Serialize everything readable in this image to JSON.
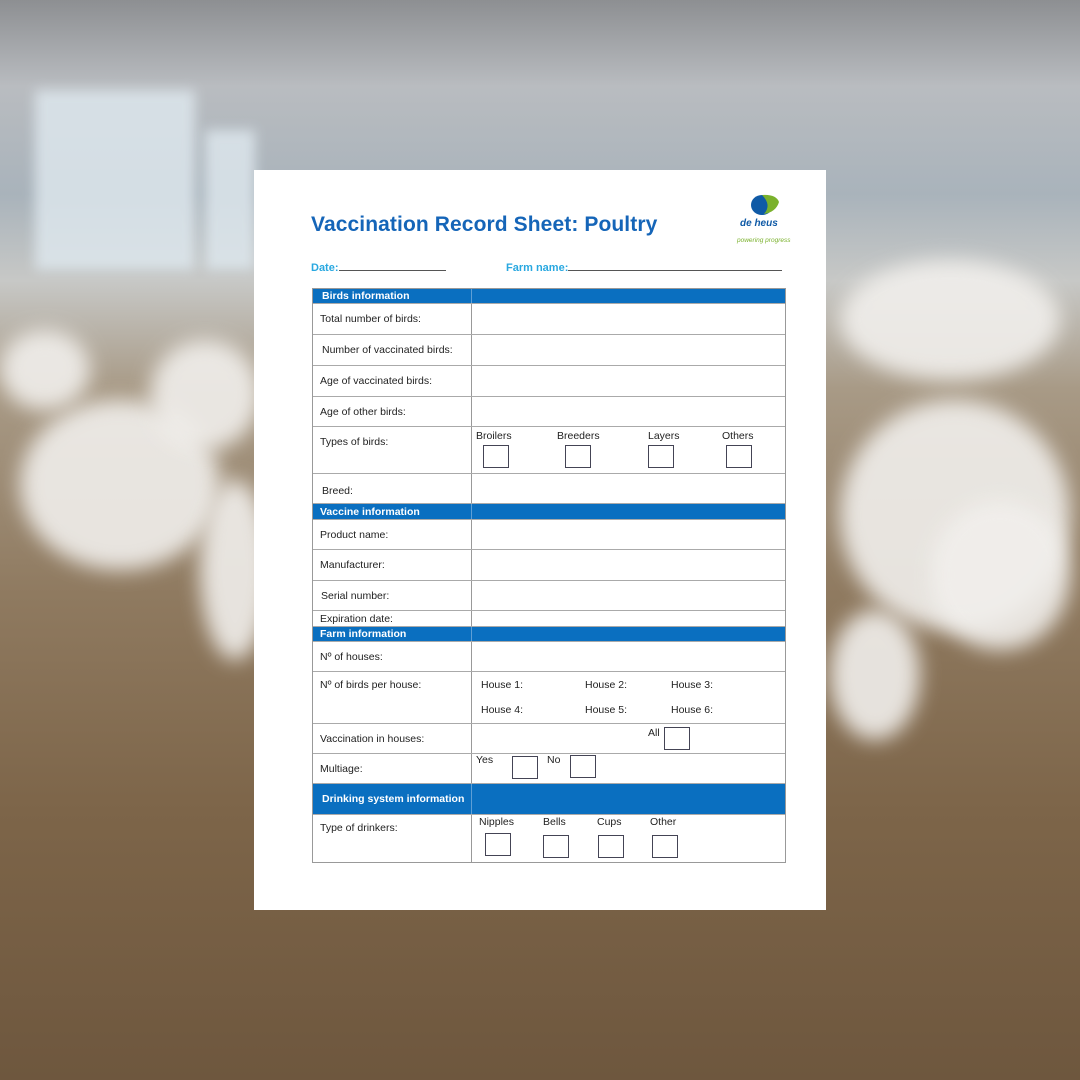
{
  "title": "Vaccination Record Sheet: Poultry",
  "logo": {
    "name": "de heus",
    "tagline": "powering progress"
  },
  "fields": {
    "date": "Date:",
    "farm_name": "Farm name:"
  },
  "colors": {
    "header_blue": "#0a6fc0",
    "title_blue": "#1565b8",
    "field_label": "#29a8e0",
    "logo_green": "#7ab12c"
  },
  "sections": {
    "birds": {
      "header": "Birds information",
      "total": "Total number of birds:",
      "vaccinated": "Number of vaccinated birds:",
      "age_vaccinated": "Age of vaccinated birds:",
      "age_other": "Age of other birds:",
      "types": "Types of birds:",
      "type_options": [
        "Broilers",
        "Breeders",
        "Layers",
        "Others"
      ],
      "breed": "Breed:"
    },
    "vaccine": {
      "header": "Vaccine information",
      "product": "Product name:",
      "manufacturer": "Manufacturer:",
      "serial": "Serial number:",
      "expiration": "Expiration date:"
    },
    "farm": {
      "header": "Farm information",
      "houses": "Nº of houses:",
      "birds_per_house": "Nº of birds per house:",
      "house_labels": [
        "House 1:",
        "House 2:",
        "House 3:",
        "House 4:",
        "House 5:",
        "House 6:"
      ],
      "vaccination_in_houses": "Vaccination in houses:",
      "all": "All",
      "multiage": "Multiage:",
      "yes": "Yes",
      "no": "No"
    },
    "drinking": {
      "header": "Drinking system information",
      "type": "Type of drinkers:",
      "options": [
        "Nipples",
        "Bells",
        "Cups",
        "Other"
      ]
    }
  }
}
